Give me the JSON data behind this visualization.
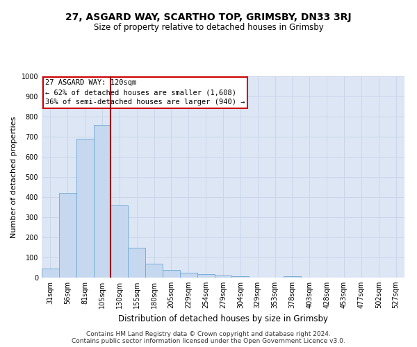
{
  "title": "27, ASGARD WAY, SCARTHO TOP, GRIMSBY, DN33 3RJ",
  "subtitle": "Size of property relative to detached houses in Grimsby",
  "xlabel": "Distribution of detached houses by size in Grimsby",
  "ylabel": "Number of detached properties",
  "categories": [
    "31sqm",
    "56sqm",
    "81sqm",
    "105sqm",
    "130sqm",
    "155sqm",
    "180sqm",
    "205sqm",
    "229sqm",
    "254sqm",
    "279sqm",
    "304sqm",
    "329sqm",
    "353sqm",
    "378sqm",
    "403sqm",
    "428sqm",
    "453sqm",
    "477sqm",
    "502sqm",
    "527sqm"
  ],
  "values": [
    45,
    420,
    690,
    760,
    360,
    150,
    70,
    38,
    25,
    18,
    10,
    8,
    0,
    0,
    8,
    0,
    0,
    0,
    0,
    0,
    0
  ],
  "bar_color": "#c5d8ef",
  "bar_edge_color": "#6fa8d4",
  "red_line_x": 3.5,
  "annotation_line1": "27 ASGARD WAY: 120sqm",
  "annotation_line2": "← 62% of detached houses are smaller (1,608)",
  "annotation_line3": "36% of semi-detached houses are larger (940) →",
  "annotation_box_facecolor": "#ffffff",
  "annotation_box_edgecolor": "#cc0000",
  "ylim_max": 1000,
  "yticks": [
    0,
    100,
    200,
    300,
    400,
    500,
    600,
    700,
    800,
    900,
    1000
  ],
  "grid_color": "#c8d4e8",
  "bg_color": "#dce6f5",
  "footer_line1": "Contains HM Land Registry data © Crown copyright and database right 2024.",
  "footer_line2": "Contains public sector information licensed under the Open Government Licence v3.0.",
  "title_fontsize": 10,
  "subtitle_fontsize": 8.5,
  "xlabel_fontsize": 8.5,
  "ylabel_fontsize": 8,
  "tick_fontsize": 7,
  "annot_fontsize": 7.5,
  "footer_fontsize": 6.5
}
